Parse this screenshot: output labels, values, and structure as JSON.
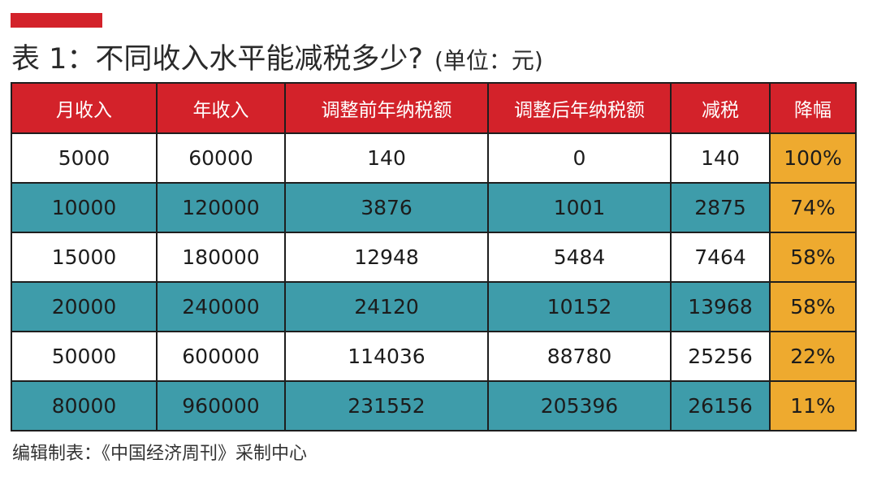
{
  "title": "表 1：不同收入水平能减税多少?",
  "unit": "(单位：元)",
  "table": {
    "headers": [
      "月收入",
      "年收入",
      "调整前年纳税额",
      "调整后年纳税额",
      "减税",
      "降幅"
    ],
    "rows": [
      [
        "5000",
        "60000",
        "140",
        "0",
        "140",
        "100%"
      ],
      [
        "10000",
        "120000",
        "3876",
        "1001",
        "2875",
        "74%"
      ],
      [
        "15000",
        "180000",
        "12948",
        "5484",
        "7464",
        "58%"
      ],
      [
        "20000",
        "240000",
        "24120",
        "10152",
        "13968",
        "58%"
      ],
      [
        "50000",
        "600000",
        "114036",
        "88780",
        "25256",
        "22%"
      ],
      [
        "80000",
        "960000",
        "231552",
        "205396",
        "26156",
        "11%"
      ]
    ]
  },
  "footer": "编辑制表：《中国经济周刊》采制中心",
  "colors": {
    "accent_red": "#d3222a",
    "row_teal": "#3e9caa",
    "highlight_orange": "#eeaa2f"
  }
}
